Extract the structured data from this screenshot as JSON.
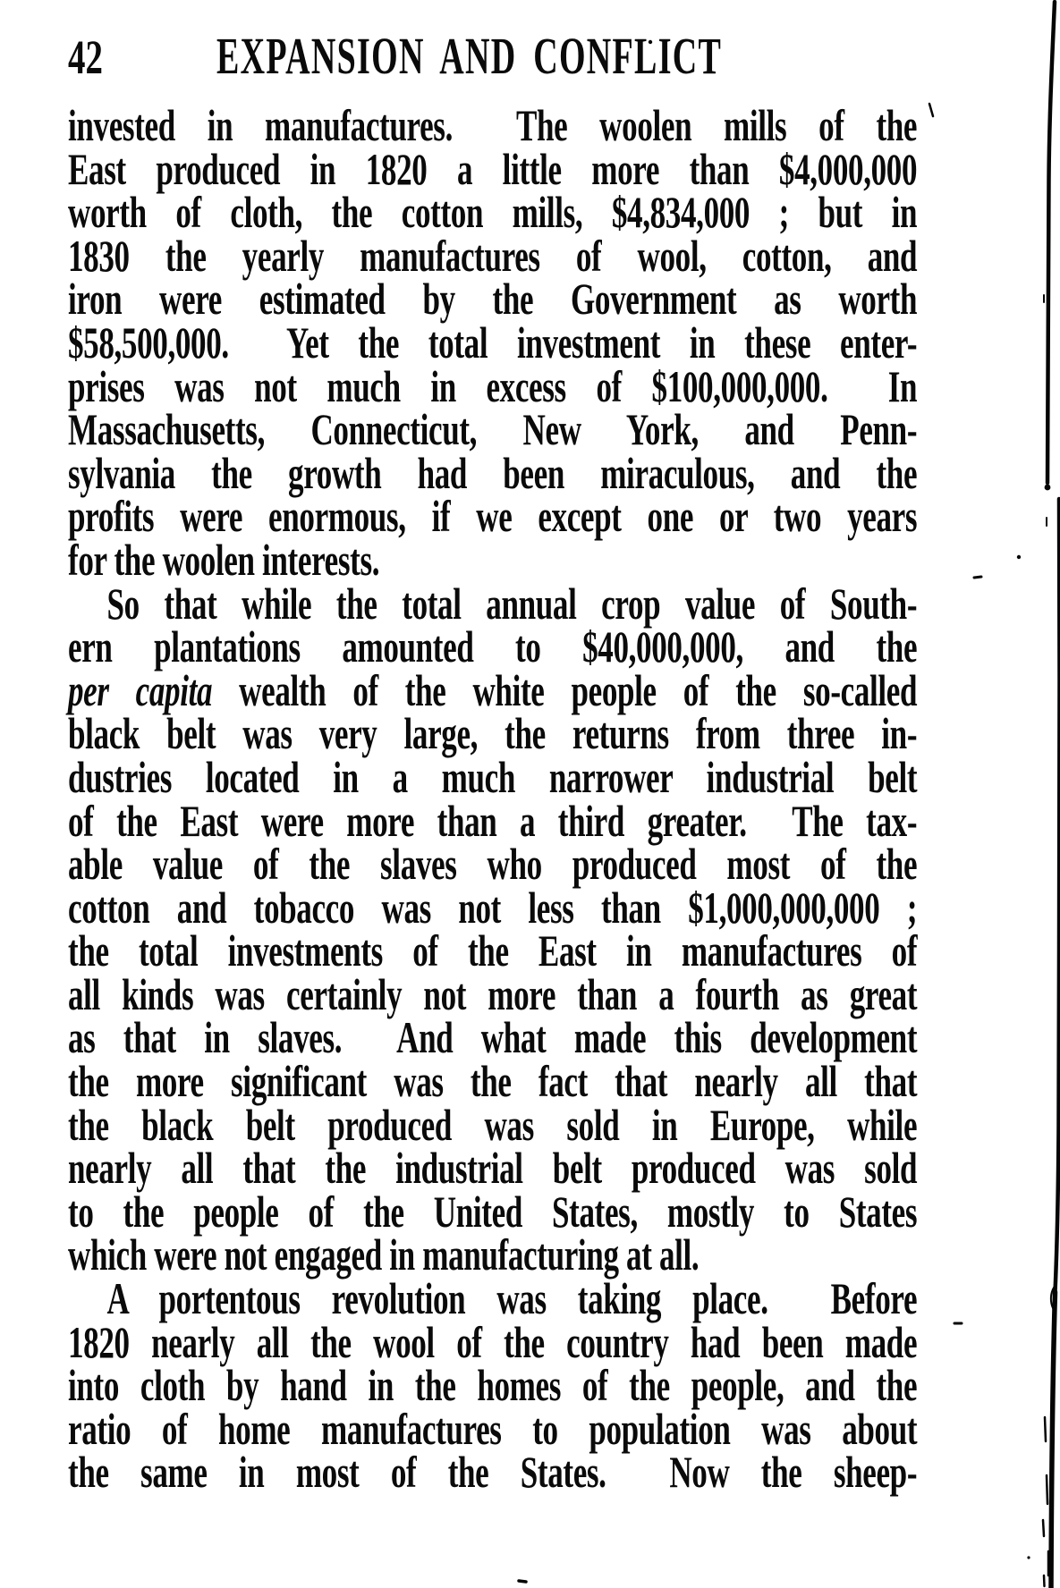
{
  "page": {
    "number": "42",
    "running_title": "EXPANSION AND CONFLICT",
    "paragraphs": [
      {
        "indent": false,
        "flush_last": true,
        "lines": [
          "invested in manufactures.  The woolen mills of the",
          "East produced in 1820 a little more than $4,000,000",
          "worth of cloth, the cotton mills, $4,834,000 ; but in",
          "1830 the yearly manufactures of wool, cotton, and",
          "iron were estimated by the Government as worth",
          "$58,500,000.  Yet the total investment in these enter-",
          "prises was not much in excess of $100,000,000.  In",
          "Massachusetts, Connecticut, New York, and Penn-",
          "sylvania the growth had been miraculous, and the",
          "profits were enormous, if we except one or two years",
          "for the woolen interests."
        ]
      },
      {
        "indent": true,
        "flush_last": true,
        "lines": [
          "So that while the total annual crop value of South-",
          "ern plantations amounted to $40,000,000, and the",
          [
            {
              "text": "per capita",
              "italic": true
            },
            {
              "text": " wealth of the white people of the so-called",
              "italic": false
            }
          ],
          "black belt was very large, the returns from three in-",
          "dustries located in a much narrower industrial belt",
          "of the East were more than a third greater.  The tax-",
          "able value of the slaves who produced most of the",
          "cotton and tobacco was not less than $1,000,000,000 ;",
          "the total investments of the East in manufactures of",
          "all kinds was certainly not more than a fourth as great",
          "as that in slaves.  And what made this development",
          "the more significant was the fact that nearly all that",
          "the black belt produced was sold in Europe, while",
          "nearly all that the industrial belt produced was sold",
          "to the people of the United States, mostly to States",
          "which were not engaged in manufacturing at all."
        ]
      },
      {
        "indent": true,
        "flush_last": false,
        "lines": [
          "A portentous revolution was taking place.  Before",
          "1820 nearly all the wool of the country had been made",
          "into cloth by hand in the homes of the people, and the",
          "ratio of home manufactures to population was about",
          "the same in most of the States.  Now the sheep-"
        ]
      }
    ]
  },
  "colors": {
    "ink": "#0a0a0a",
    "paper": "#ffffff"
  }
}
